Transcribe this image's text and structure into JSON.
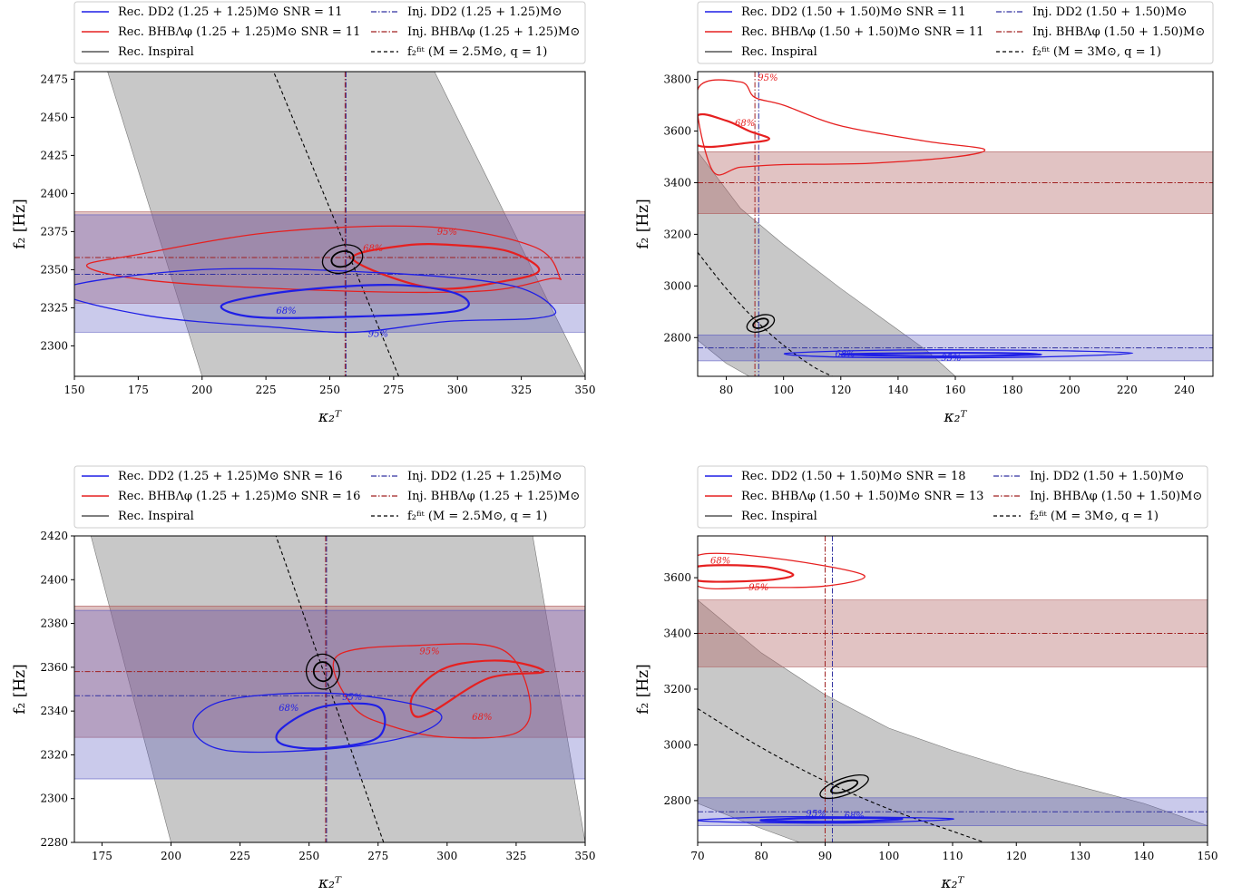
{
  "colors": {
    "rec_dd2": "#1f1fe6",
    "rec_bhb": "#e62020",
    "inspiral": "#000000",
    "inj_dd2": "#3030a0",
    "inj_bhb": "#a02020",
    "fit": "#000000",
    "band_gray": "#9a9a9a",
    "band_red": "#b06060",
    "band_blue": "#5a5ac0"
  },
  "chart_data": [
    {
      "type": "contour",
      "xlabel": "κ₂ᵀ",
      "ylabel": "f₂ [Hz]",
      "xlim": [
        150,
        350
      ],
      "ylim": [
        2280,
        2480
      ],
      "xticks": [
        "150",
        "175",
        "200",
        "225",
        "250",
        "275",
        "300",
        "325",
        "350"
      ],
      "yticks": [
        "2300",
        "2325",
        "2350",
        "2375",
        "2400",
        "2425",
        "2450",
        "2475"
      ],
      "legend": {
        "rec_dd2": "Rec. DD2 (1.25 + 1.25)M⊙ SNR = 11",
        "rec_bhb": "Rec. BHBΛφ (1.25 + 1.25)M⊙ SNR = 11",
        "rec_insp": "Rec. Inspiral",
        "inj_dd2": "Inj. DD2 (1.25 + 1.25)M⊙",
        "inj_bhb": "Inj. BHBΛφ (1.25 + 1.25)M⊙",
        "fit": "f₂ᶠⁱᵗ (M = 2.5M⊙, q = 1)"
      },
      "inj_dd2": {
        "x": 256,
        "y": 2347
      },
      "inj_bhb": {
        "x": 256,
        "y": 2358
      },
      "band_red": [
        2328,
        2388
      ],
      "band_blue": [
        2309,
        2386
      ],
      "gray_band_x_at_ymin": [
        200,
        350
      ],
      "gray_band_x_at_ymax": [
        163,
        291
      ],
      "fit_line": [
        [
          277,
          2280
        ],
        [
          228,
          2480
        ]
      ],
      "inspiral": [
        {
          "x": 255,
          "y": 2357,
          "rx": 8,
          "ry": 9
        }
      ],
      "red_contours": [
        {
          "level": "68%",
          "pts": [
            [
              259,
              2357
            ],
            [
              280,
              2366
            ],
            [
              300,
              2366
            ],
            [
              320,
              2362
            ],
            [
              332,
              2350
            ],
            [
              320,
              2343
            ],
            [
              290,
              2338
            ]
          ],
          "label_at": [
            263,
            2362
          ]
        },
        {
          "level": "95%",
          "pts": [
            [
              340,
              2345
            ],
            [
              330,
              2365
            ],
            [
              290,
              2378
            ],
            [
              230,
              2375
            ],
            [
              175,
              2360
            ],
            [
              155,
              2352
            ],
            [
              185,
              2342
            ],
            [
              255,
              2336
            ],
            [
              310,
              2336
            ],
            [
              336,
              2344
            ]
          ],
          "label_at": [
            292,
            2373
          ]
        }
      ],
      "blue_contours": [
        {
          "level": "68%",
          "pts": [
            [
              208,
              2327
            ],
            [
              235,
              2336
            ],
            [
              275,
              2340
            ],
            [
              300,
              2334
            ],
            [
              300,
              2323
            ],
            [
              255,
              2319
            ],
            [
              220,
              2319
            ]
          ],
          "label_at": [
            229,
            2321
          ]
        },
        {
          "level": "95%",
          "pts": [
            [
              296,
              2316
            ],
            [
              330,
              2318
            ],
            [
              338,
              2324
            ],
            [
              320,
              2340
            ],
            [
              270,
              2348
            ],
            [
              200,
              2350
            ],
            [
              145,
              2337
            ],
            [
              178,
              2320
            ],
            [
              230,
              2312
            ],
            [
              260,
              2309
            ]
          ],
          "label_at": [
            265,
            2306
          ]
        }
      ]
    },
    {
      "type": "contour",
      "xlabel": "κ₂ᵀ",
      "ylabel": "f₂ [Hz]",
      "xlim": [
        70,
        250
      ],
      "ylim": [
        2650,
        3830
      ],
      "xticks": [
        "80",
        "100",
        "120",
        "140",
        "160",
        "180",
        "200",
        "220",
        "240"
      ],
      "yticks": [
        "2800",
        "3000",
        "3200",
        "3400",
        "3600",
        "3800"
      ],
      "legend": {
        "rec_dd2": "Rec. DD2 (1.50 + 1.50)M⊙ SNR = 11",
        "rec_bhb": "Rec. BHBΛφ (1.50 + 1.50)M⊙ SNR = 11",
        "rec_insp": "Rec. Inspiral",
        "inj_dd2": "Inj. DD2 (1.50 + 1.50)M⊙",
        "inj_bhb": "Inj. BHBΛφ (1.50 + 1.50)M⊙",
        "fit": "f₂ᶠⁱᵗ (M = 3M⊙, q = 1)"
      },
      "inj_dd2": {
        "x": 91,
        "y": 2760
      },
      "inj_bhb": {
        "x": 90,
        "y": 3400
      },
      "band_red": [
        3280,
        3520
      ],
      "band_blue": [
        2710,
        2810
      ],
      "inspiral": [
        {
          "x": 92,
          "y": 2855,
          "rx": 5,
          "ry": 30
        }
      ],
      "fit_curve": [
        [
          70,
          3130
        ],
        [
          80,
          2990
        ],
        [
          90,
          2870
        ],
        [
          100,
          2770
        ],
        [
          110,
          2690
        ],
        [
          117,
          2650
        ]
      ],
      "gray_upper": [
        [
          70,
          3520
        ],
        [
          85,
          3300
        ],
        [
          100,
          3160
        ],
        [
          120,
          2990
        ],
        [
          140,
          2830
        ],
        [
          150,
          2750
        ],
        [
          160,
          2650
        ]
      ],
      "gray_lower": [
        [
          70,
          2790
        ],
        [
          80,
          2700
        ],
        [
          88,
          2650
        ]
      ],
      "red_contours": [
        {
          "level": "68%",
          "pts": [
            [
              70,
              3660
            ],
            [
              80,
              3640
            ],
            [
              88,
              3600
            ],
            [
              95,
              3570
            ],
            [
              88,
              3555
            ],
            [
              70,
              3545
            ]
          ],
          "label_at": [
            83,
            3620
          ]
        },
        {
          "level": "95%",
          "pts": [
            [
              70,
              3760
            ],
            [
              85,
              3790
            ],
            [
              90,
              3730
            ],
            [
              100,
              3700
            ],
            [
              120,
              3620
            ],
            [
              150,
              3560
            ],
            [
              170,
              3530
            ],
            [
              160,
              3500
            ],
            [
              130,
              3475
            ],
            [
              100,
              3470
            ],
            [
              85,
              3460
            ],
            [
              75,
              3450
            ]
          ],
          "label_at": [
            91,
            3795
          ]
        }
      ],
      "blue_contours": [
        {
          "level": "68%",
          "pts": [
            [
              120,
              2735
            ],
            [
              150,
              2740
            ],
            [
              175,
              2740
            ],
            [
              190,
              2735
            ],
            [
              175,
              2730
            ],
            [
              150,
              2728
            ]
          ],
          "label_at": [
            118,
            2725
          ]
        },
        {
          "level": "95%",
          "pts": [
            [
              102,
              2740
            ],
            [
              140,
              2752
            ],
            [
              190,
              2750
            ],
            [
              222,
              2740
            ],
            [
              190,
              2725
            ],
            [
              140,
              2722
            ],
            [
              110,
              2728
            ]
          ],
          "label_at": [
            155,
            2710
          ]
        }
      ]
    },
    {
      "type": "contour",
      "xlabel": "κ₂ᵀ",
      "ylabel": "f₂ [Hz]",
      "xlim": [
        165,
        350
      ],
      "ylim": [
        2280,
        2420
      ],
      "xticks": [
        "175",
        "200",
        "225",
        "250",
        "275",
        "300",
        "325",
        "350"
      ],
      "yticks": [
        "2280",
        "2300",
        "2320",
        "2340",
        "2360",
        "2380",
        "2400",
        "2420"
      ],
      "legend": {
        "rec_dd2": "Rec. DD2 (1.25 + 1.25)M⊙ SNR = 16",
        "rec_bhb": "Rec. BHBΛφ (1.25 + 1.25)M⊙ SNR = 16",
        "rec_insp": "Rec. Inspiral",
        "inj_dd2": "Inj. DD2 (1.25 + 1.25)M⊙",
        "inj_bhb": "Inj. BHBΛφ (1.25 + 1.25)M⊙",
        "fit": "f₂ᶠⁱᵗ (M = 2.5M⊙, q = 1)"
      },
      "inj_dd2": {
        "x": 256,
        "y": 2347
      },
      "inj_bhb": {
        "x": 256,
        "y": 2358
      },
      "band_red": [
        2328,
        2388
      ],
      "band_blue": [
        2309,
        2386
      ],
      "gray_band_x_at_ymin": [
        200,
        350
      ],
      "gray_band_x_at_ymax": [
        171,
        331
      ],
      "fit_line": [
        [
          277,
          2280
        ],
        [
          238,
          2420
        ]
      ],
      "inspiral": [
        {
          "x": 255,
          "y": 2358,
          "rx": 6,
          "ry": 8
        }
      ],
      "red_contours": [
        {
          "level": "68%",
          "pts": [
            [
              288,
              2348
            ],
            [
              300,
              2360
            ],
            [
              320,
              2363
            ],
            [
              335,
              2358
            ],
            [
              315,
              2355
            ],
            [
              295,
              2340
            ],
            [
              288,
              2338
            ]
          ],
          "label_at": [
            309,
            2336
          ]
        },
        {
          "level": "95%",
          "pts": [
            [
              260,
              2365
            ],
            [
              290,
              2370
            ],
            [
              320,
              2368
            ],
            [
              330,
              2345
            ],
            [
              325,
              2330
            ],
            [
              300,
              2328
            ],
            [
              280,
              2333
            ],
            [
              266,
              2342
            ]
          ],
          "label_at": [
            290,
            2366
          ]
        }
      ],
      "blue_contours": [
        {
          "level": "68%",
          "pts": [
            [
              240,
              2332
            ],
            [
              255,
              2342
            ],
            [
              275,
              2342
            ],
            [
              275,
              2328
            ],
            [
              255,
              2323
            ],
            [
              240,
              2325
            ]
          ],
          "label_at": [
            239,
            2340
          ]
        },
        {
          "level": "95%",
          "pts": [
            [
              208,
              2333
            ],
            [
              220,
              2345
            ],
            [
              260,
              2348
            ],
            [
              296,
              2340
            ],
            [
              290,
              2330
            ],
            [
              260,
              2323
            ],
            [
              220,
              2322
            ]
          ],
          "label_at": [
            262,
            2345
          ]
        }
      ]
    },
    {
      "type": "contour",
      "xlabel": "κ₂ᵀ",
      "ylabel": "f₂ [Hz]",
      "xlim": [
        70,
        150
      ],
      "ylim": [
        2650,
        3750
      ],
      "xticks": [
        "70",
        "80",
        "90",
        "100",
        "110",
        "120",
        "130",
        "140",
        "150"
      ],
      "yticks": [
        "2800",
        "3000",
        "3200",
        "3400",
        "3600"
      ],
      "legend": {
        "rec_dd2": "Rec. DD2 (1.50 + 1.50)M⊙ SNR = 18",
        "rec_bhb": "Rec. BHBΛφ (1.50 + 1.50)M⊙ SNR = 13",
        "rec_insp": "Rec. Inspiral",
        "inj_dd2": "Inj. DD2 (1.50 + 1.50)M⊙",
        "inj_bhb": "Inj. BHBΛφ (1.50 + 1.50)M⊙",
        "fit": "f₂ᶠⁱᵗ (M = 3M⊙, q = 1)"
      },
      "inj_dd2": {
        "x": 91,
        "y": 2760
      },
      "inj_bhb": {
        "x": 90,
        "y": 3400
      },
      "band_red": [
        3280,
        3520
      ],
      "band_blue": [
        2710,
        2810
      ],
      "inspiral": [
        {
          "x": 93,
          "y": 2850,
          "rx": 4,
          "ry": 30
        }
      ],
      "fit_curve": [
        [
          70,
          3130
        ],
        [
          80,
          2990
        ],
        [
          90,
          2870
        ],
        [
          100,
          2770
        ],
        [
          110,
          2690
        ],
        [
          115,
          2650
        ]
      ],
      "gray_upper": [
        [
          70,
          3520
        ],
        [
          80,
          3330
        ],
        [
          90,
          3180
        ],
        [
          100,
          3060
        ],
        [
          110,
          2980
        ],
        [
          120,
          2910
        ],
        [
          130,
          2850
        ],
        [
          140,
          2790
        ],
        [
          150,
          2710
        ]
      ],
      "gray_lower": [
        [
          70,
          2790
        ],
        [
          80,
          2700
        ],
        [
          86,
          2650
        ]
      ],
      "red_contours": [
        {
          "level": "68%",
          "pts": [
            [
              70,
              3640
            ],
            [
              80,
              3640
            ],
            [
              85,
              3610
            ],
            [
              80,
              3590
            ],
            [
              70,
              3590
            ]
          ],
          "label_at": [
            72,
            3650
          ]
        },
        {
          "level": "95%",
          "pts": [
            [
              70,
              3680
            ],
            [
              82,
              3670
            ],
            [
              96,
              3610
            ],
            [
              90,
              3570
            ],
            [
              80,
              3565
            ],
            [
              70,
              3570
            ]
          ],
          "label_at": [
            78,
            3555
          ]
        }
      ],
      "blue_contours": [
        {
          "level": "68%",
          "pts": [
            [
              80,
              2730
            ],
            [
              90,
              2738
            ],
            [
              102,
              2735
            ],
            [
              95,
              2725
            ],
            [
              85,
              2725
            ]
          ],
          "label_at": [
            93,
            2735
          ]
        },
        {
          "level": "95%",
          "pts": [
            [
              70,
              2730
            ],
            [
              85,
              2742
            ],
            [
              110,
              2735
            ],
            [
              95,
              2720
            ],
            [
              78,
              2722
            ]
          ],
          "label_at": [
            87,
            2742
          ]
        }
      ]
    }
  ]
}
